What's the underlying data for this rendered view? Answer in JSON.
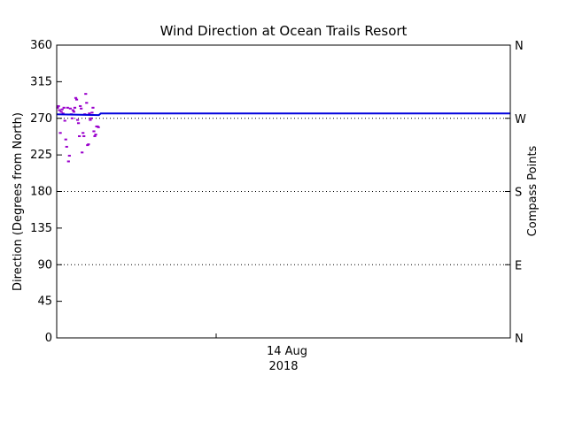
{
  "chart_data": {
    "type": "scatter",
    "title": "Wind Direction at Ocean Trails Resort",
    "ylabel": "Direction (Degrees from North)",
    "y2label": "Compass Points",
    "ylim": [
      0,
      360
    ],
    "yticks": [
      "0",
      "45",
      "90",
      "135",
      "180",
      "225",
      "270",
      "315",
      "360"
    ],
    "compass_ticks": [
      {
        "value": 0,
        "label": "N"
      },
      {
        "value": 90,
        "label": "E"
      },
      {
        "value": 180,
        "label": "S"
      },
      {
        "value": 270,
        "label": "W"
      },
      {
        "value": 360,
        "label": "N"
      }
    ],
    "x_date_label": {
      "line1": "14 Aug",
      "line2": "2018"
    },
    "reference_lines": [
      90,
      180,
      270
    ],
    "grid": "dotted horizontal lines at E, S and W",
    "series": [
      {
        "color": "#9a00cc",
        "style": "short dashes",
        "x": [
          0.2,
          0.4,
          0.6,
          0.8,
          1.0,
          1.2,
          1.4,
          1.6,
          1.8,
          2.0,
          2.2,
          2.4,
          2.6,
          2.8,
          3.0,
          3.2,
          3.4,
          3.6,
          3.8,
          4.0,
          4.2,
          4.4,
          4.6,
          4.8,
          5.0,
          5.2,
          5.4,
          5.6,
          5.8,
          6.0,
          6.2,
          6.4,
          6.6,
          6.8,
          7.0,
          7.2,
          7.4,
          7.6,
          7.8,
          8.0,
          8.2,
          8.4,
          8.6,
          8.8,
          9.0,
          9.2
        ],
        "y": [
          283,
          285,
          280,
          252,
          278,
          281,
          276,
          283,
          267,
          244,
          235,
          283,
          217,
          224,
          282,
          275,
          270,
          280,
          278,
          283,
          295,
          293,
          268,
          264,
          248,
          285,
          282,
          228,
          252,
          248,
          275,
          300,
          289,
          237,
          238,
          276,
          268,
          270,
          277,
          283,
          254,
          248,
          250,
          260,
          260,
          259
        ]
      },
      {
        "color": "#0000dd",
        "style": "solid",
        "x": [
          0,
          9.3,
          9.5,
          9.7,
          10,
          12.5,
          15,
          20,
          25,
          30,
          35,
          40,
          45,
          50,
          55,
          60,
          65,
          70,
          75,
          80,
          85,
          90,
          95,
          100
        ],
        "y": [
          275,
          274,
          275,
          276,
          276,
          276,
          276,
          276,
          276,
          276,
          276,
          276,
          276,
          276,
          276,
          276,
          276,
          276,
          276,
          276,
          276,
          276,
          276,
          276
        ]
      }
    ]
  }
}
